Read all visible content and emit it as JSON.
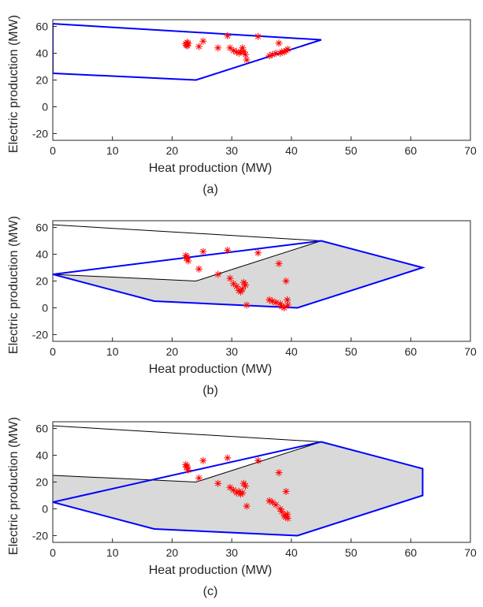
{
  "colors": {
    "boundary": "#0000ff",
    "edge": "#000000",
    "fill": "#d9d9d9",
    "marker": "#ff0000",
    "axis": "#262626"
  },
  "chart_data": [
    {
      "type": "scatter",
      "panel_label": "(a)",
      "xlabel": "Heat production (MW)",
      "ylabel": "Electric production (MW)",
      "xlim": [
        0,
        70
      ],
      "ylim": [
        -25,
        65
      ],
      "xticks": [
        0,
        10,
        20,
        30,
        40,
        50,
        60,
        70
      ],
      "yticks": [
        -20,
        0,
        20,
        40,
        60
      ],
      "grid": false,
      "boundary_polygon": [
        [
          0,
          62
        ],
        [
          45,
          50
        ],
        [
          24,
          20
        ],
        [
          0,
          25
        ]
      ],
      "shaded_polygon": [],
      "black_edges": [],
      "points": [
        [
          22.3,
          47
        ],
        [
          22.4,
          46
        ],
        [
          22.5,
          48
        ],
        [
          22.6,
          45.5
        ],
        [
          22.7,
          47.5
        ],
        [
          24.5,
          45
        ],
        [
          25.2,
          49
        ],
        [
          27.7,
          44
        ],
        [
          29.3,
          53
        ],
        [
          29.7,
          44
        ],
        [
          30.3,
          42
        ],
        [
          30.8,
          41
        ],
        [
          31.2,
          40
        ],
        [
          31.5,
          41
        ],
        [
          31.8,
          44
        ],
        [
          32.0,
          41
        ],
        [
          32.3,
          39
        ],
        [
          32.5,
          35
        ],
        [
          34.4,
          52.5
        ],
        [
          36.3,
          38
        ],
        [
          36.8,
          39
        ],
        [
          37.4,
          40
        ],
        [
          37.9,
          47.5
        ],
        [
          38.1,
          40
        ],
        [
          38.4,
          41
        ],
        [
          38.8,
          41
        ],
        [
          39.1,
          42
        ],
        [
          39.4,
          43
        ]
      ]
    },
    {
      "type": "scatter",
      "panel_label": "(b)",
      "xlabel": "Heat production (MW)",
      "ylabel": "Electric production (MW)",
      "xlim": [
        0,
        70
      ],
      "ylim": [
        -25,
        65
      ],
      "xticks": [
        0,
        10,
        20,
        30,
        40,
        50,
        60,
        70
      ],
      "yticks": [
        -20,
        0,
        20,
        40,
        60
      ],
      "grid": false,
      "boundary_polygon": [
        [
          0,
          25
        ],
        [
          17,
          5
        ],
        [
          41,
          0
        ],
        [
          62,
          30
        ],
        [
          45,
          50
        ]
      ],
      "shaded_polygon": [
        [
          0,
          25
        ],
        [
          24,
          20
        ],
        [
          45,
          50
        ],
        [
          62,
          30
        ],
        [
          41,
          0
        ],
        [
          17,
          5
        ]
      ],
      "black_edges": [
        [
          [
            0,
            25
          ],
          [
            0,
            62
          ],
          [
            45,
            50
          ]
        ],
        [
          [
            0,
            25
          ],
          [
            24,
            20
          ],
          [
            45,
            50
          ]
        ]
      ],
      "points": [
        [
          22.3,
          39
        ],
        [
          22.4,
          37
        ],
        [
          22.5,
          38
        ],
        [
          22.7,
          35
        ],
        [
          24.5,
          29
        ],
        [
          25.2,
          42
        ],
        [
          27.7,
          25
        ],
        [
          29.3,
          43
        ],
        [
          29.7,
          22
        ],
        [
          30.3,
          18
        ],
        [
          30.8,
          16
        ],
        [
          31.2,
          13
        ],
        [
          31.5,
          12
        ],
        [
          31.8,
          14
        ],
        [
          32.0,
          19
        ],
        [
          32.3,
          17
        ],
        [
          32.5,
          2
        ],
        [
          34.4,
          41
        ],
        [
          36.3,
          6
        ],
        [
          36.8,
          5
        ],
        [
          37.4,
          4
        ],
        [
          37.9,
          33
        ],
        [
          38.1,
          3
        ],
        [
          38.4,
          1
        ],
        [
          38.8,
          0
        ],
        [
          39.1,
          20
        ],
        [
          39.3,
          6
        ],
        [
          39.4,
          2
        ]
      ]
    },
    {
      "type": "scatter",
      "panel_label": "(c)",
      "xlabel": "Heat production (MW)",
      "ylabel": "Electric production (MW)",
      "xlim": [
        0,
        70
      ],
      "ylim": [
        -25,
        65
      ],
      "xticks": [
        0,
        10,
        20,
        30,
        40,
        50,
        60,
        70
      ],
      "yticks": [
        -20,
        0,
        20,
        40,
        60
      ],
      "grid": false,
      "boundary_polygon": [
        [
          0,
          5
        ],
        [
          17,
          -15
        ],
        [
          41,
          -20
        ],
        [
          62,
          10
        ],
        [
          62,
          30
        ],
        [
          45,
          50
        ]
      ],
      "shaded_polygon": [
        [
          0,
          5
        ],
        [
          0,
          25
        ],
        [
          24,
          20
        ],
        [
          45,
          50
        ],
        [
          62,
          30
        ],
        [
          62,
          10
        ],
        [
          41,
          -20
        ],
        [
          17,
          -15
        ]
      ],
      "black_edges": [
        [
          [
            0,
            5
          ],
          [
            0,
            62
          ],
          [
            45,
            50
          ]
        ],
        [
          [
            0,
            25
          ],
          [
            24,
            20
          ],
          [
            45,
            50
          ]
        ]
      ],
      "points": [
        [
          22.3,
          33
        ],
        [
          22.4,
          31
        ],
        [
          22.5,
          32
        ],
        [
          22.7,
          29
        ],
        [
          24.5,
          23
        ],
        [
          25.2,
          36
        ],
        [
          27.7,
          19
        ],
        [
          29.3,
          38
        ],
        [
          29.7,
          16
        ],
        [
          30.3,
          14
        ],
        [
          30.8,
          12
        ],
        [
          31.2,
          13
        ],
        [
          31.5,
          11
        ],
        [
          31.8,
          12
        ],
        [
          32.0,
          19
        ],
        [
          32.3,
          17
        ],
        [
          32.5,
          2
        ],
        [
          34.4,
          36
        ],
        [
          36.3,
          6
        ],
        [
          36.8,
          5
        ],
        [
          37.4,
          3
        ],
        [
          37.9,
          27
        ],
        [
          38.1,
          0
        ],
        [
          38.4,
          -2
        ],
        [
          38.8,
          -5
        ],
        [
          39.1,
          13
        ],
        [
          39.3,
          -4
        ],
        [
          39.4,
          -7
        ],
        [
          39.0,
          -6
        ]
      ]
    }
  ]
}
